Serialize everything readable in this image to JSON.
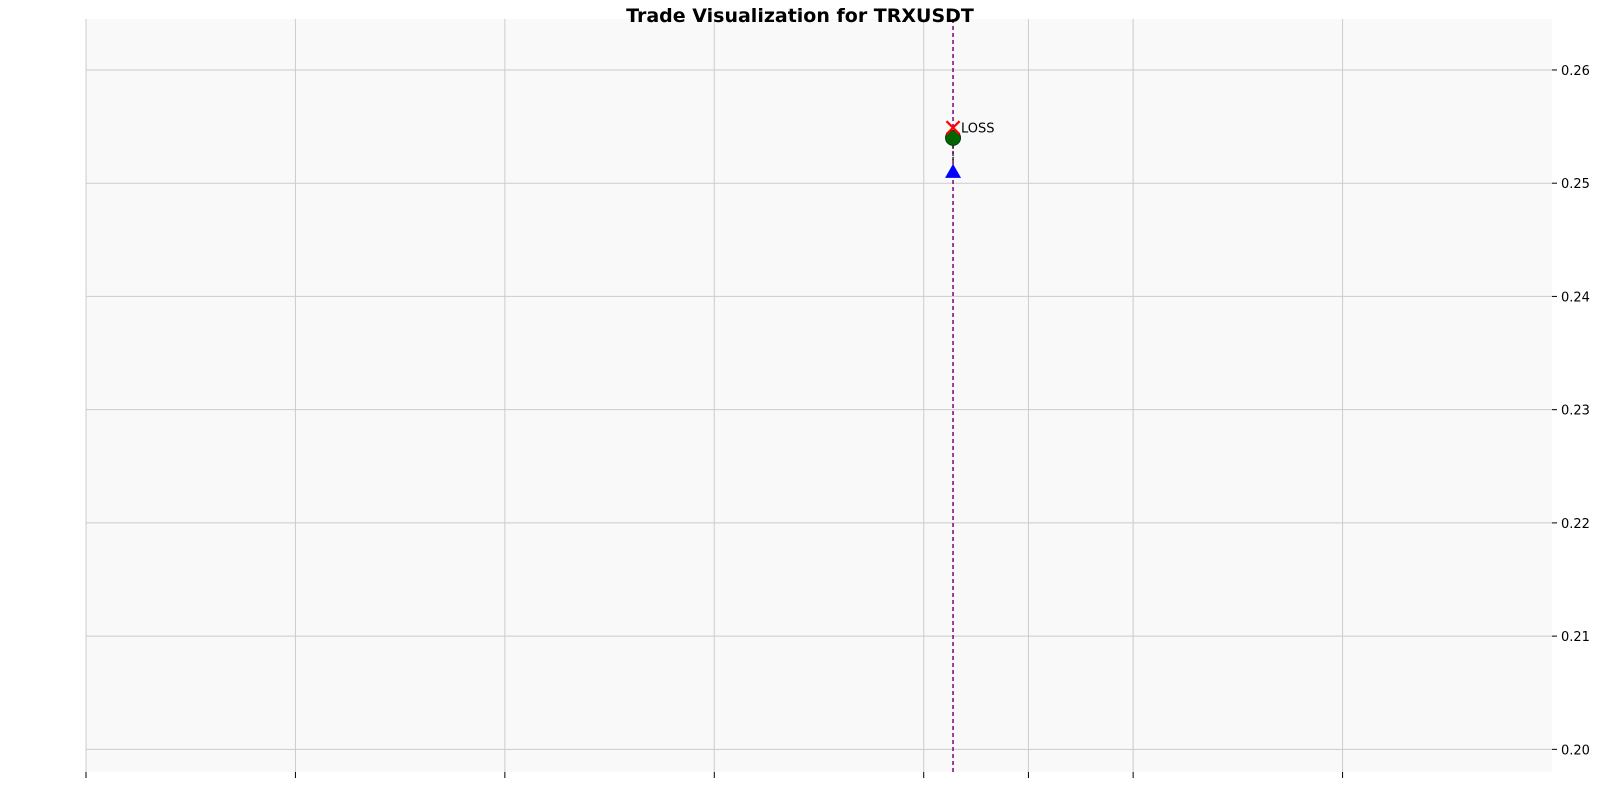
{
  "chart_data": {
    "type": "scatter",
    "title": "Trade Visualization for TRXUSDT",
    "xlabel": "",
    "ylabel": "",
    "y_axis_side": "right",
    "ylim": [
      0.198,
      0.2645
    ],
    "xlim": [
      0,
      7
    ],
    "x_ticks": [
      0,
      1,
      2,
      3,
      4,
      4.5,
      5,
      6
    ],
    "x_tick_labels": [],
    "y_ticks": [
      0.2,
      0.21,
      0.22,
      0.23,
      0.24,
      0.25,
      0.26
    ],
    "y_tick_labels": [
      "0.20",
      "0.21",
      "0.22",
      "0.23",
      "0.24",
      "0.25",
      "0.26"
    ],
    "grid": true,
    "legend": "none",
    "colors": {
      "plot_background": "#f9f9f9",
      "grid": "#cccccc",
      "entry_marker": "#0000ff",
      "exit_marker": "#006400",
      "loss_marker": "#ff0000",
      "vertical_line": "#800080",
      "connector": "#000000"
    },
    "vertical_line": {
      "x": 4.14
    },
    "markers": [
      {
        "kind": "triangle-up",
        "x": 4.14,
        "y": 0.251,
        "color": "#0000ff"
      },
      {
        "kind": "circle",
        "x": 4.14,
        "y": 0.254,
        "color": "#006400"
      },
      {
        "kind": "x",
        "x": 4.14,
        "y": 0.2549,
        "color": "#ff0000"
      }
    ],
    "connector": {
      "x": 4.14,
      "y_from": 0.251,
      "y_to": 0.254
    },
    "annotations": [
      {
        "text": "LOSS",
        "x": 4.14,
        "y": 0.2549
      }
    ]
  }
}
